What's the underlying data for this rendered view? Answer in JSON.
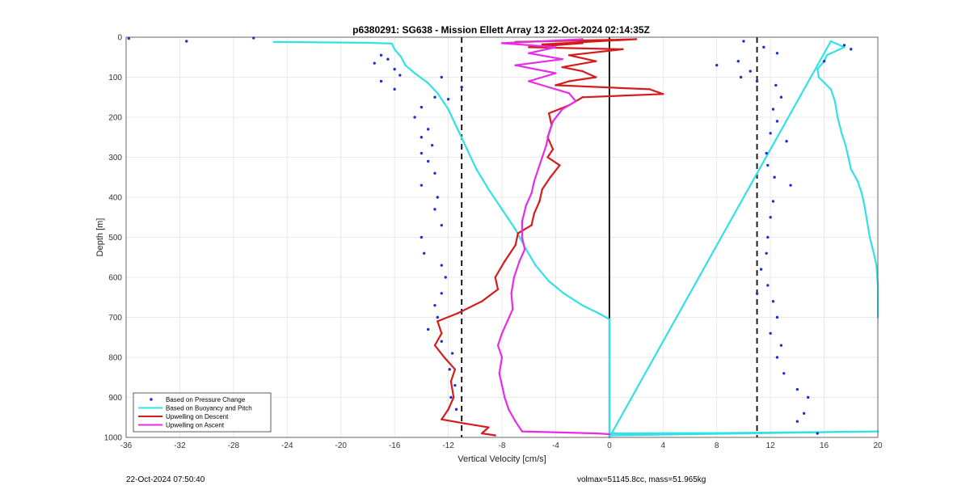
{
  "chart_data": {
    "type": "scatter",
    "title": "p6380291: SG638 - Mission Ellett Array 13 22-Oct-2024 02:14:35Z",
    "xlabel": "Vertical Velocity [cm/s]",
    "ylabel": "Depth [m]",
    "xlim": [
      -36,
      20
    ],
    "ylim": [
      0,
      1000
    ],
    "y_reversed": true,
    "grid": true,
    "x_ticks": [
      -36,
      -32,
      -28,
      -24,
      -20,
      -16,
      -12,
      -8,
      -4,
      0,
      4,
      8,
      12,
      16,
      20
    ],
    "y_ticks": [
      0,
      100,
      200,
      300,
      400,
      500,
      600,
      700,
      800,
      900,
      1000
    ],
    "legend_position": "bottom-left",
    "reference_lines": [
      {
        "x": -11,
        "style": "dashed",
        "color": "#000000"
      },
      {
        "x": 11,
        "style": "dashed",
        "color": "#000000"
      },
      {
        "x": 0,
        "style": "solid",
        "color": "#000000"
      }
    ],
    "series": [
      {
        "name": "Based on Pressure Change",
        "style": "dots",
        "color": "#1f2fd6",
        "points": [
          [
            -35.8,
            3
          ],
          [
            -31.5,
            10
          ],
          [
            -26.5,
            2
          ],
          [
            -17,
            45
          ],
          [
            -16.5,
            55
          ],
          [
            -17.5,
            65
          ],
          [
            -16,
            80
          ],
          [
            -15.6,
            95
          ],
          [
            -17,
            110
          ],
          [
            -16,
            130
          ],
          [
            -12.5,
            100
          ],
          [
            -11,
            125
          ],
          [
            -13,
            150
          ],
          [
            -12,
            155
          ],
          [
            -14,
            175
          ],
          [
            -14.5,
            200
          ],
          [
            -13.5,
            230
          ],
          [
            -14,
            250
          ],
          [
            -13.2,
            270
          ],
          [
            -14,
            290
          ],
          [
            -13.5,
            310
          ],
          [
            -13,
            340
          ],
          [
            -14,
            370
          ],
          [
            -12.8,
            400
          ],
          [
            -13,
            430
          ],
          [
            -12.5,
            470
          ],
          [
            -14,
            500
          ],
          [
            -13.8,
            540
          ],
          [
            -12.5,
            570
          ],
          [
            -12.2,
            600
          ],
          [
            -12.5,
            640
          ],
          [
            -13,
            670
          ],
          [
            -12.8,
            700
          ],
          [
            -13.5,
            730
          ],
          [
            -12.5,
            760
          ],
          [
            -11.7,
            790
          ],
          [
            -11.9,
            830
          ],
          [
            -11.5,
            870
          ],
          [
            -11.8,
            900
          ],
          [
            -11.4,
            930
          ],
          [
            10,
            10
          ],
          [
            11.5,
            25
          ],
          [
            12.5,
            40
          ],
          [
            9.6,
            60
          ],
          [
            8,
            70
          ],
          [
            10.5,
            85
          ],
          [
            9.8,
            100
          ],
          [
            11,
            110
          ],
          [
            12.4,
            120
          ],
          [
            12.8,
            150
          ],
          [
            12.2,
            180
          ],
          [
            12.5,
            210
          ],
          [
            12,
            240
          ],
          [
            13.2,
            260
          ],
          [
            11.7,
            290
          ],
          [
            11.8,
            320
          ],
          [
            12.3,
            350
          ],
          [
            13.5,
            370
          ],
          [
            12.2,
            410
          ],
          [
            12,
            450
          ],
          [
            11.8,
            500
          ],
          [
            11.7,
            540
          ],
          [
            11.3,
            580
          ],
          [
            11.8,
            620
          ],
          [
            11,
            640
          ],
          [
            12.2,
            660
          ],
          [
            12.5,
            700
          ],
          [
            12,
            740
          ],
          [
            12.8,
            770
          ],
          [
            12.5,
            800
          ],
          [
            13,
            840
          ],
          [
            14,
            880
          ],
          [
            14.8,
            900
          ],
          [
            14.5,
            940
          ],
          [
            14,
            960
          ],
          [
            15.5,
            990
          ],
          [
            18,
            30
          ],
          [
            17.5,
            20
          ],
          [
            16,
            60
          ]
        ]
      },
      {
        "name": "Based on Buoyancy and Pitch",
        "style": "line",
        "color": "#33e0e6",
        "points": [
          [
            -25,
            12
          ],
          [
            -18,
            14
          ],
          [
            -16.2,
            16
          ],
          [
            -16,
            30
          ],
          [
            -15.5,
            50
          ],
          [
            -15.2,
            70
          ],
          [
            -14.5,
            90
          ],
          [
            -13.5,
            115
          ],
          [
            -12.8,
            140
          ],
          [
            -12,
            180
          ],
          [
            -11.3,
            230
          ],
          [
            -10.6,
            280
          ],
          [
            -9.9,
            330
          ],
          [
            -9,
            380
          ],
          [
            -8,
            430
          ],
          [
            -7,
            480
          ],
          [
            -6.2,
            530
          ],
          [
            -5.5,
            570
          ],
          [
            -4.5,
            610
          ],
          [
            -3.4,
            640
          ],
          [
            -2,
            670
          ],
          [
            -0.8,
            690
          ],
          [
            -0.1,
            703
          ],
          [
            0,
            705
          ],
          [
            0,
            990
          ],
          [
            8,
            989
          ],
          [
            20,
            985
          ],
          [
            0,
            995
          ],
          [
            0,
            1000
          ],
          [
            16.5,
            10
          ],
          [
            17.5,
            25
          ],
          [
            16.2,
            45
          ],
          [
            16,
            60
          ],
          [
            15.5,
            80
          ],
          [
            15.6,
            100
          ],
          [
            16.5,
            130
          ],
          [
            16.8,
            160
          ],
          [
            17,
            200
          ],
          [
            17.3,
            240
          ],
          [
            17.6,
            270
          ],
          [
            17.8,
            300
          ],
          [
            18,
            330
          ],
          [
            18.5,
            360
          ],
          [
            18.8,
            390
          ],
          [
            19,
            420
          ],
          [
            19.2,
            460
          ],
          [
            19.4,
            500
          ],
          [
            19.7,
            540
          ],
          [
            19.9,
            570
          ],
          [
            20,
            620
          ],
          [
            20,
            650
          ],
          [
            20,
            700
          ]
        ]
      },
      {
        "name": "Upwelling on Descent",
        "style": "line",
        "color": "#d41c1c",
        "points": [
          [
            -7,
            12
          ],
          [
            2,
            5
          ],
          [
            -5,
            18
          ],
          [
            -2,
            15
          ],
          [
            -6,
            25
          ],
          [
            1,
            30
          ],
          [
            -3,
            45
          ],
          [
            -1,
            60
          ],
          [
            -3.5,
            75
          ],
          [
            -2,
            85
          ],
          [
            -1,
            100
          ],
          [
            -3,
            110
          ],
          [
            -4,
            120
          ],
          [
            3,
            130
          ],
          [
            4,
            142
          ],
          [
            -2,
            150
          ],
          [
            -3,
            170
          ],
          [
            -4.5,
            190
          ],
          [
            -4.3,
            220
          ],
          [
            -4.6,
            250
          ],
          [
            -4.2,
            280
          ],
          [
            -4.6,
            300
          ],
          [
            -3.7,
            320
          ],
          [
            -4.4,
            350
          ],
          [
            -5,
            380
          ],
          [
            -5.2,
            410
          ],
          [
            -5.6,
            440
          ],
          [
            -5.8,
            470
          ],
          [
            -6.8,
            490
          ],
          [
            -7,
            520
          ],
          [
            -7.8,
            560
          ],
          [
            -8.5,
            600
          ],
          [
            -8.3,
            630
          ],
          [
            -9.5,
            660
          ],
          [
            -11.3,
            690
          ],
          [
            -12.8,
            710
          ],
          [
            -12.5,
            740
          ],
          [
            -13,
            770
          ],
          [
            -12.3,
            800
          ],
          [
            -11.5,
            830
          ],
          [
            -11.8,
            860
          ],
          [
            -11.6,
            900
          ],
          [
            -12,
            930
          ],
          [
            -12.5,
            955
          ],
          [
            -10.8,
            965
          ],
          [
            -9,
            975
          ],
          [
            -9.5,
            990
          ],
          [
            -8.5,
            995
          ]
        ]
      },
      {
        "name": "Upwelling on Ascent",
        "style": "line",
        "color": "#e62de6",
        "points": [
          [
            -2,
            5
          ],
          [
            -8,
            15
          ],
          [
            -4,
            25
          ],
          [
            -6,
            40
          ],
          [
            -3.5,
            55
          ],
          [
            -7,
            70
          ],
          [
            -4,
            90
          ],
          [
            -6,
            110
          ],
          [
            -3,
            140
          ],
          [
            -2.5,
            160
          ],
          [
            -3.5,
            180
          ],
          [
            -4.2,
            210
          ],
          [
            -4.5,
            240
          ],
          [
            -4.7,
            270
          ],
          [
            -5,
            300
          ],
          [
            -5.3,
            330
          ],
          [
            -5.6,
            360
          ],
          [
            -5.8,
            390
          ],
          [
            -6.2,
            420
          ],
          [
            -6.5,
            460
          ],
          [
            -6.5,
            500
          ],
          [
            -6.3,
            530
          ],
          [
            -6.7,
            560
          ],
          [
            -7.1,
            600
          ],
          [
            -7.3,
            640
          ],
          [
            -7.2,
            680
          ],
          [
            -7.6,
            710
          ],
          [
            -8,
            740
          ],
          [
            -8.3,
            770
          ],
          [
            -8,
            800
          ],
          [
            -8.2,
            840
          ],
          [
            -8,
            870
          ],
          [
            -7.8,
            900
          ],
          [
            -7.5,
            930
          ],
          [
            -7,
            960
          ],
          [
            -6.5,
            985
          ],
          [
            -1,
            990
          ],
          [
            0,
            992
          ]
        ]
      }
    ]
  },
  "footer": {
    "timestamp": "22-Oct-2024 07:50:40",
    "volmax_mass": "volmax=51145.8cc, mass=51.965kg"
  }
}
